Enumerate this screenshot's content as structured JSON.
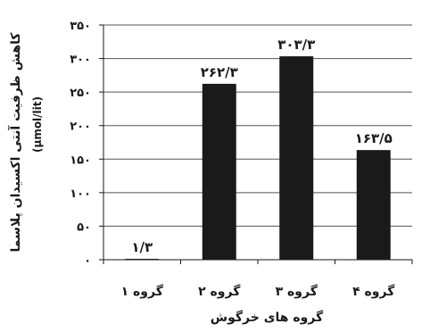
{
  "chart_data": {
    "type": "bar",
    "categories": [
      "گروه ۱",
      "گروه ۲",
      "گروه ۳",
      "گروه ۴"
    ],
    "values": [
      1.3,
      262.3,
      303.3,
      163.5
    ],
    "data_labels": [
      "۱/۳",
      "۲۶۲/۳",
      "۳۰۳/۳",
      "۱۶۳/۵"
    ],
    "title": "",
    "xlabel": "گروه های خرگوش",
    "ylabel": "کاهش ظرفیت آنتی اکسیدان پلاسما",
    "ylabel_unit": "(μmol/lit)",
    "ylim": [
      0,
      350
    ],
    "yticks": [
      0,
      50,
      100,
      150,
      200,
      250,
      300,
      350
    ],
    "ytick_labels": [
      "۰",
      "۵۰",
      "۱۰۰",
      "۱۵۰",
      "۲۰۰",
      "۲۵۰",
      "۳۰۰",
      "۳۵۰"
    ],
    "grid": "horizontal",
    "legend": "none",
    "bar_color": "#1a1a1a",
    "grid_color": "#555555"
  }
}
